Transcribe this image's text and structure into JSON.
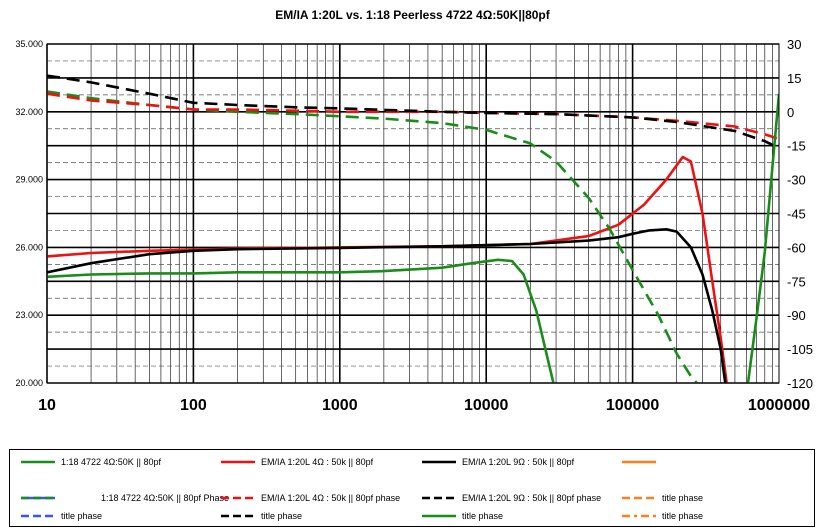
{
  "chart_data": {
    "type": "line",
    "title": "EM/IA 1:20L vs. 1:18 Peerless 4722  4Ω:50K||80pf",
    "x_scale": "log",
    "xlim": [
      10,
      1000000
    ],
    "x_ticks": [
      "10",
      "100",
      "1000",
      "10000",
      "100000",
      "1000000"
    ],
    "ylim_left": [
      20,
      35
    ],
    "y_ticks_left": [
      "35.000",
      "32.000",
      "29.000",
      "26.000",
      "23.000",
      "20.000"
    ],
    "ylim_right": [
      -120,
      30
    ],
    "y_ticks_right": [
      "30",
      "15",
      "0",
      "-15",
      "-30",
      "-45",
      "-60",
      "-75",
      "-90",
      "-105",
      "-120"
    ],
    "grid": true,
    "legend_position": "bottom",
    "series": [
      {
        "name": "1:18 4722 4Ω:50K || 80pf",
        "color": "#1a8c1a",
        "dash": "solid",
        "axis": "left",
        "x": [
          10,
          20,
          50,
          100,
          200,
          500,
          1000,
          2000,
          5000,
          8000,
          12000,
          15000,
          18000,
          22000,
          26000,
          30000
        ],
        "y": [
          24.7,
          24.8,
          24.85,
          24.85,
          24.9,
          24.9,
          24.9,
          24.95,
          25.1,
          25.3,
          25.45,
          25.4,
          24.8,
          23.2,
          21.2,
          19.5
        ]
      },
      {
        "name": "EM/IA 1:20L 4Ω : 50k || 80pf",
        "color": "#ee1111",
        "dash": "solid",
        "axis": "left",
        "x": [
          10,
          20,
          50,
          100,
          200,
          500,
          1000,
          5000,
          20000,
          50000,
          80000,
          120000,
          170000,
          220000,
          250000,
          300000,
          350000,
          400000,
          450000
        ],
        "y": [
          25.6,
          25.75,
          25.85,
          25.9,
          25.95,
          25.98,
          26.0,
          26.05,
          26.15,
          26.5,
          27.0,
          27.9,
          29.0,
          30.0,
          29.8,
          27.5,
          24.5,
          22.0,
          19.5
        ]
      },
      {
        "name": "EM/IA 1:20L 9Ω : 50k || 80pf",
        "color": "#000000",
        "dash": "solid",
        "axis": "left",
        "x": [
          10,
          20,
          50,
          100,
          200,
          500,
          1000,
          5000,
          20000,
          50000,
          80000,
          100000,
          130000,
          170000,
          200000,
          250000,
          300000,
          350000,
          400000,
          440000
        ],
        "y": [
          24.9,
          25.3,
          25.7,
          25.85,
          25.92,
          25.95,
          25.98,
          26.05,
          26.15,
          26.3,
          26.45,
          26.6,
          26.75,
          26.8,
          26.7,
          26.0,
          24.8,
          23.2,
          21.5,
          19.5
        ]
      },
      {
        "name": "",
        "color": "#ff7f1a",
        "dash": "solid",
        "axis": "left",
        "x": [],
        "y": []
      },
      {
        "name": "",
        "color": "#3355ff",
        "dash": "solid",
        "axis": "left",
        "x": [],
        "y": []
      },
      {
        "name": "",
        "color": "#000000",
        "dash": "solid",
        "axis": "left",
        "x": [],
        "y": []
      },
      {
        "name": "1:18 4722 4Ω:50K || 80pf Phase",
        "color": "#1a8c1a",
        "dash": "dashed",
        "axis": "right",
        "x": [
          10,
          20,
          50,
          100,
          200,
          500,
          1000,
          2000,
          5000,
          10000,
          20000,
          30000,
          50000,
          70000,
          100000,
          150000,
          200000,
          250000,
          300000
        ],
        "y": [
          9,
          6,
          3,
          1,
          0,
          -1,
          -2,
          -3,
          -5,
          -8,
          -14,
          -22,
          -38,
          -52,
          -70,
          -90,
          -107,
          -117,
          -123
        ]
      },
      {
        "name": "EM/IA 1:20L 4Ω : 50k || 80pf phase",
        "color": "#ee1111",
        "dash": "dashed",
        "axis": "right",
        "x": [
          10,
          20,
          50,
          100,
          200,
          500,
          1000,
          5000,
          10000,
          30000,
          100000,
          200000,
          500000,
          800000,
          1000000
        ],
        "y": [
          8,
          5,
          3,
          1,
          1,
          0.5,
          0,
          0,
          -0.5,
          -1,
          -2.5,
          -4,
          -6.5,
          -10,
          -12
        ]
      },
      {
        "name": "EM/IA 1:20L 9Ω : 50k || 80pf phase",
        "color": "#000000",
        "dash": "dashed",
        "axis": "right",
        "x": [
          10,
          20,
          50,
          100,
          200,
          500,
          1000,
          5000,
          10000,
          30000,
          100000,
          200000,
          500000,
          800000,
          1000000
        ],
        "y": [
          16,
          13,
          8,
          4,
          3,
          2,
          1.5,
          0,
          -0.5,
          -1,
          -2.5,
          -4.5,
          -8.5,
          -13,
          -16
        ]
      },
      {
        "name": "title phase",
        "color": "#ff7f1a",
        "dash": "dashed",
        "axis": "right",
        "x": [],
        "y": []
      },
      {
        "name": "title phase",
        "color": "#3355ff",
        "dash": "dashed",
        "axis": "right",
        "x": [],
        "y": []
      },
      {
        "name": "title phase",
        "color": "#000000",
        "dash": "dashed",
        "axis": "right",
        "x": [],
        "y": []
      },
      {
        "name": "title phase",
        "color": "#1a8c1a",
        "dash": "solid",
        "axis": "right",
        "x": [
          600000,
          700000,
          800000,
          900000,
          1000000
        ],
        "y": [
          -125,
          -92,
          -62,
          -25,
          8
        ]
      },
      {
        "name": "title phase",
        "color": "#ff7f1a",
        "dash": "dashdot",
        "axis": "right",
        "x": [],
        "y": []
      }
    ]
  }
}
